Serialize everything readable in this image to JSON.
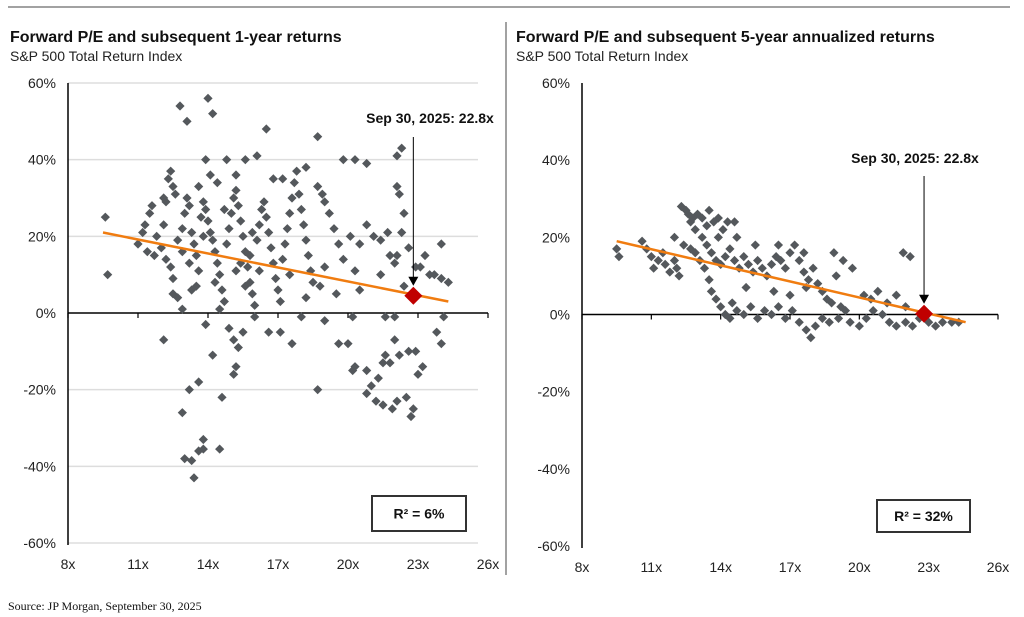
{
  "source": "Source: JP Morgan, September 30, 2025",
  "colors": {
    "point": "#54585c",
    "trend": "#f07c10",
    "marker": "#c00000",
    "grid": "#dddddd"
  },
  "chart_data": [
    {
      "type": "scatter",
      "title": "Forward P/E and subsequent 1-year returns",
      "subtitle": "S&P 500 Total Return Index",
      "xlabel": "",
      "ylabel": "",
      "xlim": [
        8,
        26
      ],
      "ylim": [
        -60,
        60
      ],
      "x_ticks": [
        "8x",
        "11x",
        "14x",
        "17x",
        "20x",
        "23x",
        "26x"
      ],
      "x_tick_values": [
        8,
        11,
        14,
        17,
        20,
        23,
        26
      ],
      "y_ticks": [
        "60%",
        "40%",
        "20%",
        "0%",
        "-20%",
        "-40%",
        "-60%"
      ],
      "y_tick_values": [
        60,
        40,
        20,
        0,
        -20,
        -40,
        -60
      ],
      "grid": true,
      "annotation": "Sep 30, 2025:  22.8x",
      "current": {
        "x": 22.8,
        "y": 4.5
      },
      "r2_label": "R² = 6%",
      "trendline": [
        [
          9.5,
          21
        ],
        [
          24.3,
          3
        ]
      ],
      "points": [
        [
          9.6,
          25
        ],
        [
          9.7,
          10
        ],
        [
          12.8,
          54
        ],
        [
          13.1,
          50
        ],
        [
          14,
          56
        ],
        [
          14.2,
          52
        ],
        [
          16.5,
          48
        ],
        [
          18.7,
          46
        ],
        [
          19.8,
          40
        ],
        [
          20.3,
          40
        ],
        [
          22.3,
          43
        ],
        [
          22.1,
          41
        ],
        [
          20.8,
          39
        ],
        [
          12.1,
          -7
        ],
        [
          13.2,
          -20
        ],
        [
          13.6,
          -18
        ],
        [
          14.2,
          -11
        ],
        [
          12.9,
          -26
        ],
        [
          13,
          -38
        ],
        [
          13.3,
          -38.5
        ],
        [
          13.6,
          -36
        ],
        [
          13.8,
          -33
        ],
        [
          13.8,
          -35.5
        ],
        [
          14.5,
          -35.5
        ],
        [
          13.4,
          -43
        ],
        [
          14.6,
          -22
        ],
        [
          13.9,
          -3
        ],
        [
          14.9,
          -4
        ],
        [
          15.1,
          -7
        ],
        [
          15.3,
          -9
        ],
        [
          15.2,
          -14
        ],
        [
          15.1,
          -16
        ],
        [
          15.5,
          -5
        ],
        [
          16.6,
          -5
        ],
        [
          17.1,
          -5
        ],
        [
          17.6,
          -8
        ],
        [
          19,
          -2
        ],
        [
          19.6,
          -8
        ],
        [
          20,
          -8
        ],
        [
          18.7,
          -20
        ],
        [
          20.3,
          -14
        ],
        [
          20.2,
          -15
        ],
        [
          20.8,
          -15
        ],
        [
          21,
          -19
        ],
        [
          21.3,
          -17
        ],
        [
          21.5,
          -13
        ],
        [
          21.5,
          -24
        ],
        [
          21.9,
          -25
        ],
        [
          22.1,
          -23
        ],
        [
          21.2,
          -23
        ],
        [
          22.5,
          -22
        ],
        [
          22.7,
          -27
        ],
        [
          22.8,
          -25
        ],
        [
          23,
          -16
        ],
        [
          23.2,
          -14
        ],
        [
          22.9,
          -10
        ],
        [
          22,
          -7
        ],
        [
          22.6,
          -10
        ],
        [
          23.8,
          -5
        ],
        [
          24,
          -8
        ],
        [
          21.6,
          -11
        ],
        [
          22.2,
          -11
        ],
        [
          21.8,
          -13
        ],
        [
          20.8,
          -21
        ],
        [
          16,
          -1
        ],
        [
          20.2,
          -1
        ],
        [
          21.6,
          -1
        ],
        [
          22,
          -1
        ],
        [
          24.1,
          -1
        ],
        [
          18,
          -1
        ],
        [
          11,
          18
        ],
        [
          11.2,
          21
        ],
        [
          11.3,
          23
        ],
        [
          11.5,
          26
        ],
        [
          11.6,
          28
        ],
        [
          11.4,
          16
        ],
        [
          11.7,
          15
        ],
        [
          11.8,
          20
        ],
        [
          12,
          17
        ],
        [
          12.1,
          23
        ],
        [
          12.2,
          29
        ],
        [
          12.3,
          35
        ],
        [
          12.4,
          37
        ],
        [
          12.5,
          33
        ],
        [
          12.6,
          31
        ],
        [
          12.2,
          14
        ],
        [
          12.4,
          12
        ],
        [
          12.5,
          9
        ],
        [
          12.5,
          5
        ],
        [
          12.7,
          4
        ],
        [
          12.9,
          1
        ],
        [
          12.7,
          19
        ],
        [
          12.9,
          22
        ],
        [
          13,
          26
        ],
        [
          13.1,
          30
        ],
        [
          13.2,
          28
        ],
        [
          13.3,
          21
        ],
        [
          13.4,
          18
        ],
        [
          13.5,
          15
        ],
        [
          13.6,
          11
        ],
        [
          13.5,
          7
        ],
        [
          13.3,
          6
        ],
        [
          13.7,
          25
        ],
        [
          13.8,
          29
        ],
        [
          13.9,
          27
        ],
        [
          14,
          24
        ],
        [
          14.1,
          21
        ],
        [
          14.2,
          19
        ],
        [
          14.3,
          16
        ],
        [
          14.4,
          13
        ],
        [
          14.5,
          10
        ],
        [
          14.6,
          6
        ],
        [
          14.7,
          3
        ],
        [
          14.5,
          1
        ],
        [
          14.8,
          18
        ],
        [
          14.9,
          22
        ],
        [
          15,
          26
        ],
        [
          15.1,
          30
        ],
        [
          15.2,
          32
        ],
        [
          15.3,
          28
        ],
        [
          15.4,
          24
        ],
        [
          15.5,
          20
        ],
        [
          15.6,
          16
        ],
        [
          15.7,
          12
        ],
        [
          15.8,
          8
        ],
        [
          15.9,
          5
        ],
        [
          16,
          2
        ],
        [
          15.2,
          11
        ],
        [
          15.4,
          13
        ],
        [
          15.6,
          7
        ],
        [
          15.8,
          15
        ],
        [
          16.1,
          19
        ],
        [
          16.2,
          23
        ],
        [
          16.3,
          27
        ],
        [
          16.4,
          29
        ],
        [
          16.5,
          25
        ],
        [
          16.6,
          21
        ],
        [
          16.7,
          17
        ],
        [
          16.8,
          13
        ],
        [
          16.9,
          9
        ],
        [
          17,
          6
        ],
        [
          17.1,
          3
        ],
        [
          17.2,
          14
        ],
        [
          17.3,
          18
        ],
        [
          17.4,
          22
        ],
        [
          17.5,
          26
        ],
        [
          17.6,
          30
        ],
        [
          17.7,
          34
        ],
        [
          17.8,
          37
        ],
        [
          17.9,
          31
        ],
        [
          18,
          27
        ],
        [
          18.1,
          23
        ],
        [
          18.2,
          19
        ],
        [
          18.3,
          15
        ],
        [
          18.4,
          11
        ],
        [
          18.5,
          8
        ],
        [
          18.7,
          33
        ],
        [
          18.9,
          31
        ],
        [
          19,
          29
        ],
        [
          19.2,
          26
        ],
        [
          19.4,
          22
        ],
        [
          19.6,
          18
        ],
        [
          19.8,
          14
        ],
        [
          19,
          12
        ],
        [
          18.8,
          7
        ],
        [
          18.2,
          4
        ],
        [
          14.1,
          36
        ],
        [
          13.9,
          40
        ],
        [
          14.8,
          40
        ],
        [
          15.6,
          40
        ],
        [
          16.1,
          41
        ],
        [
          16.8,
          35
        ],
        [
          17.2,
          35
        ],
        [
          18.2,
          38
        ],
        [
          12.1,
          30
        ],
        [
          14.4,
          34
        ],
        [
          15.2,
          36
        ],
        [
          13.6,
          33
        ],
        [
          20.3,
          11
        ],
        [
          20.5,
          6
        ],
        [
          20.8,
          23
        ],
        [
          21.1,
          20
        ],
        [
          21.4,
          19
        ],
        [
          21.4,
          10
        ],
        [
          21.7,
          21
        ],
        [
          21.8,
          15
        ],
        [
          22,
          13
        ],
        [
          22.1,
          15
        ],
        [
          22.2,
          31
        ],
        [
          22.1,
          33
        ],
        [
          22.4,
          26
        ],
        [
          22.3,
          21
        ],
        [
          22.6,
          17
        ],
        [
          22.9,
          12
        ],
        [
          23.1,
          12
        ],
        [
          23.5,
          10
        ],
        [
          23.7,
          10
        ],
        [
          24,
          18
        ],
        [
          24,
          9
        ],
        [
          24.3,
          8
        ],
        [
          23.3,
          15
        ],
        [
          22.4,
          7
        ],
        [
          20.5,
          18
        ],
        [
          20.1,
          20
        ],
        [
          19.5,
          5
        ],
        [
          13.2,
          13
        ],
        [
          14.3,
          8
        ],
        [
          16.2,
          11
        ],
        [
          17.5,
          10
        ],
        [
          15.9,
          21
        ],
        [
          14.7,
          27
        ],
        [
          12.9,
          16
        ],
        [
          13.8,
          20
        ]
      ]
    },
    {
      "type": "scatter",
      "title": "Forward P/E and subsequent 5-year annualized returns",
      "subtitle": "S&P 500 Total Return Index",
      "xlabel": "",
      "ylabel": "",
      "xlim": [
        8,
        26
      ],
      "ylim": [
        -60,
        60
      ],
      "x_ticks": [
        "8x",
        "11x",
        "14x",
        "17x",
        "20x",
        "23x",
        "26x"
      ],
      "x_tick_values": [
        8,
        11,
        14,
        17,
        20,
        23,
        26
      ],
      "y_ticks": [
        "60%",
        "40%",
        "20%",
        "0%",
        "-20%",
        "-40%",
        "-60%"
      ],
      "y_tick_values": [
        60,
        40,
        20,
        0,
        -20,
        -40,
        -60
      ],
      "grid": false,
      "annotation": "Sep 30, 2025:  22.8x",
      "current": {
        "x": 22.8,
        "y": 0.2
      },
      "r2_label": "R² = 32%",
      "trendline": [
        [
          9.5,
          19
        ],
        [
          24.6,
          -2
        ]
      ],
      "points": [
        [
          9.5,
          17
        ],
        [
          9.6,
          15
        ],
        [
          10.6,
          19
        ],
        [
          10.8,
          17
        ],
        [
          11,
          15
        ],
        [
          11.1,
          12
        ],
        [
          11.3,
          14
        ],
        [
          11.5,
          16
        ],
        [
          11.6,
          13
        ],
        [
          11.8,
          11
        ],
        [
          12,
          14
        ],
        [
          12.1,
          12
        ],
        [
          12.2,
          10
        ],
        [
          12.3,
          28
        ],
        [
          12.5,
          27
        ],
        [
          12.6,
          26
        ],
        [
          12.7,
          24
        ],
        [
          12.8,
          25
        ],
        [
          12.9,
          22
        ],
        [
          13,
          26
        ],
        [
          13.2,
          25
        ],
        [
          13.4,
          23
        ],
        [
          13.5,
          27
        ],
        [
          13.7,
          24
        ],
        [
          13.9,
          25
        ],
        [
          14.1,
          22
        ],
        [
          14.3,
          24
        ],
        [
          14.6,
          24
        ],
        [
          12.4,
          18
        ],
        [
          12.7,
          17
        ],
        [
          12.9,
          16
        ],
        [
          13.1,
          14
        ],
        [
          13.3,
          12
        ],
        [
          13.5,
          9
        ],
        [
          13.6,
          6
        ],
        [
          13.8,
          4
        ],
        [
          14,
          2
        ],
        [
          14.2,
          0
        ],
        [
          14.4,
          -1
        ],
        [
          13.4,
          18
        ],
        [
          13.6,
          16
        ],
        [
          13.8,
          14
        ],
        [
          14,
          13
        ],
        [
          14.2,
          15
        ],
        [
          14.4,
          17
        ],
        [
          14.6,
          14
        ],
        [
          14.8,
          12
        ],
        [
          15,
          15
        ],
        [
          15.2,
          13
        ],
        [
          15.4,
          11
        ],
        [
          15.6,
          14
        ],
        [
          15.8,
          12
        ],
        [
          16,
          10
        ],
        [
          16.2,
          13
        ],
        [
          16.4,
          15
        ],
        [
          16.6,
          14
        ],
        [
          16.8,
          12
        ],
        [
          17,
          16
        ],
        [
          17.2,
          18
        ],
        [
          17.4,
          14
        ],
        [
          17.6,
          11
        ],
        [
          17.8,
          9
        ],
        [
          18,
          12
        ],
        [
          18.2,
          8
        ],
        [
          18.4,
          6
        ],
        [
          18.6,
          4
        ],
        [
          18.8,
          3
        ],
        [
          19,
          10
        ],
        [
          19.2,
          2
        ],
        [
          19.4,
          1
        ],
        [
          14.5,
          3
        ],
        [
          14.7,
          1
        ],
        [
          15,
          0
        ],
        [
          15.3,
          2
        ],
        [
          15.6,
          -1
        ],
        [
          15.9,
          1
        ],
        [
          16.2,
          0
        ],
        [
          16.5,
          2
        ],
        [
          16.8,
          -1
        ],
        [
          17.1,
          1
        ],
        [
          17.4,
          -2
        ],
        [
          17.7,
          -4
        ],
        [
          17.9,
          -6
        ],
        [
          18.1,
          -3
        ],
        [
          18.4,
          -1
        ],
        [
          18.7,
          -2
        ],
        [
          19.1,
          -1
        ],
        [
          19.6,
          -2
        ],
        [
          20,
          -3
        ],
        [
          20.3,
          -1
        ],
        [
          20.6,
          1
        ],
        [
          21,
          0
        ],
        [
          21.3,
          -2
        ],
        [
          21.6,
          -3
        ],
        [
          22,
          -2
        ],
        [
          22.3,
          -3
        ],
        [
          22.6,
          -1
        ],
        [
          23,
          -2
        ],
        [
          23.3,
          -3
        ],
        [
          23.6,
          -2
        ],
        [
          24,
          -2
        ],
        [
          24.3,
          -2
        ],
        [
          20.2,
          5
        ],
        [
          20.5,
          4
        ],
        [
          20.8,
          6
        ],
        [
          21.2,
          3
        ],
        [
          21.6,
          5
        ],
        [
          21.9,
          16
        ],
        [
          22.2,
          15
        ],
        [
          22,
          2
        ],
        [
          19.3,
          14
        ],
        [
          19.7,
          12
        ],
        [
          18.9,
          16
        ],
        [
          13.2,
          20
        ],
        [
          13.9,
          20
        ],
        [
          14.7,
          20
        ],
        [
          15.5,
          18
        ],
        [
          16.5,
          18
        ],
        [
          17.6,
          16
        ],
        [
          12,
          20
        ],
        [
          15.1,
          7
        ],
        [
          16.3,
          6
        ],
        [
          17,
          5
        ],
        [
          17.7,
          7
        ]
      ]
    }
  ]
}
